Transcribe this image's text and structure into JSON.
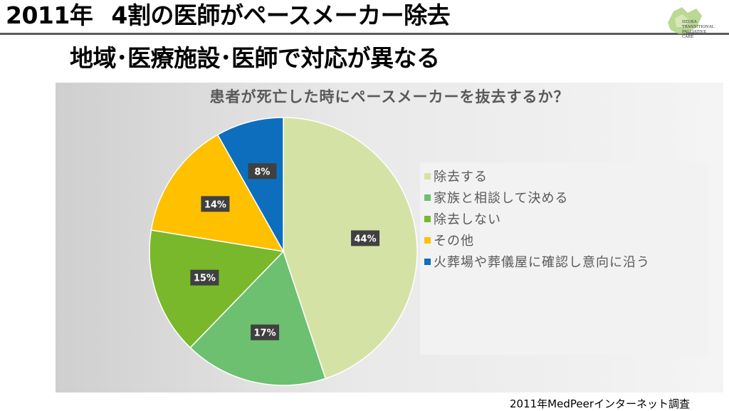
{
  "header": {
    "line1_year": "2011年",
    "line1_main": "4割の医師がペースメーカー除去",
    "line2": "地域･医療施設･医師で対応が異なる"
  },
  "logo": {
    "line1": "IIZUKA",
    "line2": "TRANSITIONAL",
    "line3": "PALLIATIVE",
    "line4": "CARE"
  },
  "source": "2011年MedPeerインターネット調査",
  "chart_data": {
    "type": "pie",
    "title": "患者が死亡した時にペースメーカーを抜去するか？",
    "legend_position": "right",
    "slices": [
      {
        "label": "除去する",
        "value": 44,
        "display": "44%",
        "color": "#d4e3a5"
      },
      {
        "label": "家族と相談して決める",
        "value": 17,
        "display": "17%",
        "color": "#6cc070"
      },
      {
        "label": "除去しない",
        "value": 15,
        "display": "15%",
        "color": "#78b82a"
      },
      {
        "label": "その他",
        "value": 14,
        "display": "14%",
        "color": "#ffc000"
      },
      {
        "label": "火葬場や葬儀屋に確認し意向に沿う",
        "value": 8,
        "display": "8%",
        "color": "#0d6ebd"
      }
    ]
  }
}
